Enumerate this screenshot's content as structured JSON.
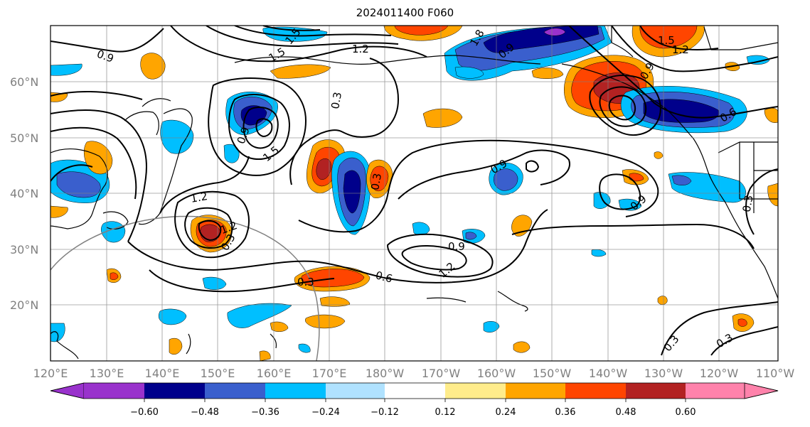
{
  "title": "2024011400 F060",
  "lat_labels": [
    "20°N",
    "30°N",
    "40°N",
    "50°N",
    "60°N"
  ],
  "lon_labels": [
    "120°E",
    "130°E",
    "140°E",
    "150°E",
    "160°E",
    "170°E",
    "180°W",
    "170°W",
    "160°W",
    "150°W",
    "140°W",
    "130°W",
    "120°W",
    "110°W"
  ],
  "colorbar": {
    "ticks": [
      "−0.60",
      "−0.48",
      "−0.36",
      "−0.24",
      "−0.12",
      "0.12",
      "0.24",
      "0.36",
      "0.48",
      "0.60"
    ],
    "colors": [
      "#9932CC",
      "#00008B",
      "#3A5FCD",
      "#00BFFF",
      "#B0E2FF",
      "#FFFFFF",
      "#FFEC8B",
      "#FFA500",
      "#FF4500",
      "#B22222",
      "#FF82AB"
    ]
  },
  "contour_labels": [
    "0.9",
    "1.2",
    "1.5",
    "1.8",
    "0.9",
    "0.3",
    "1.2",
    "0.3",
    "0.9",
    "1.5",
    "1.2",
    "0.9",
    "0.6",
    "0.3",
    "0.6",
    "0.9",
    "1.2",
    "0.3",
    "0.9",
    "0.3",
    "0.3",
    "0.3",
    "1.2",
    "1.5",
    "0.9",
    "1.5"
  ],
  "colors": {
    "land_line": "#000000",
    "grid": "#808080",
    "contour": "#000000"
  }
}
